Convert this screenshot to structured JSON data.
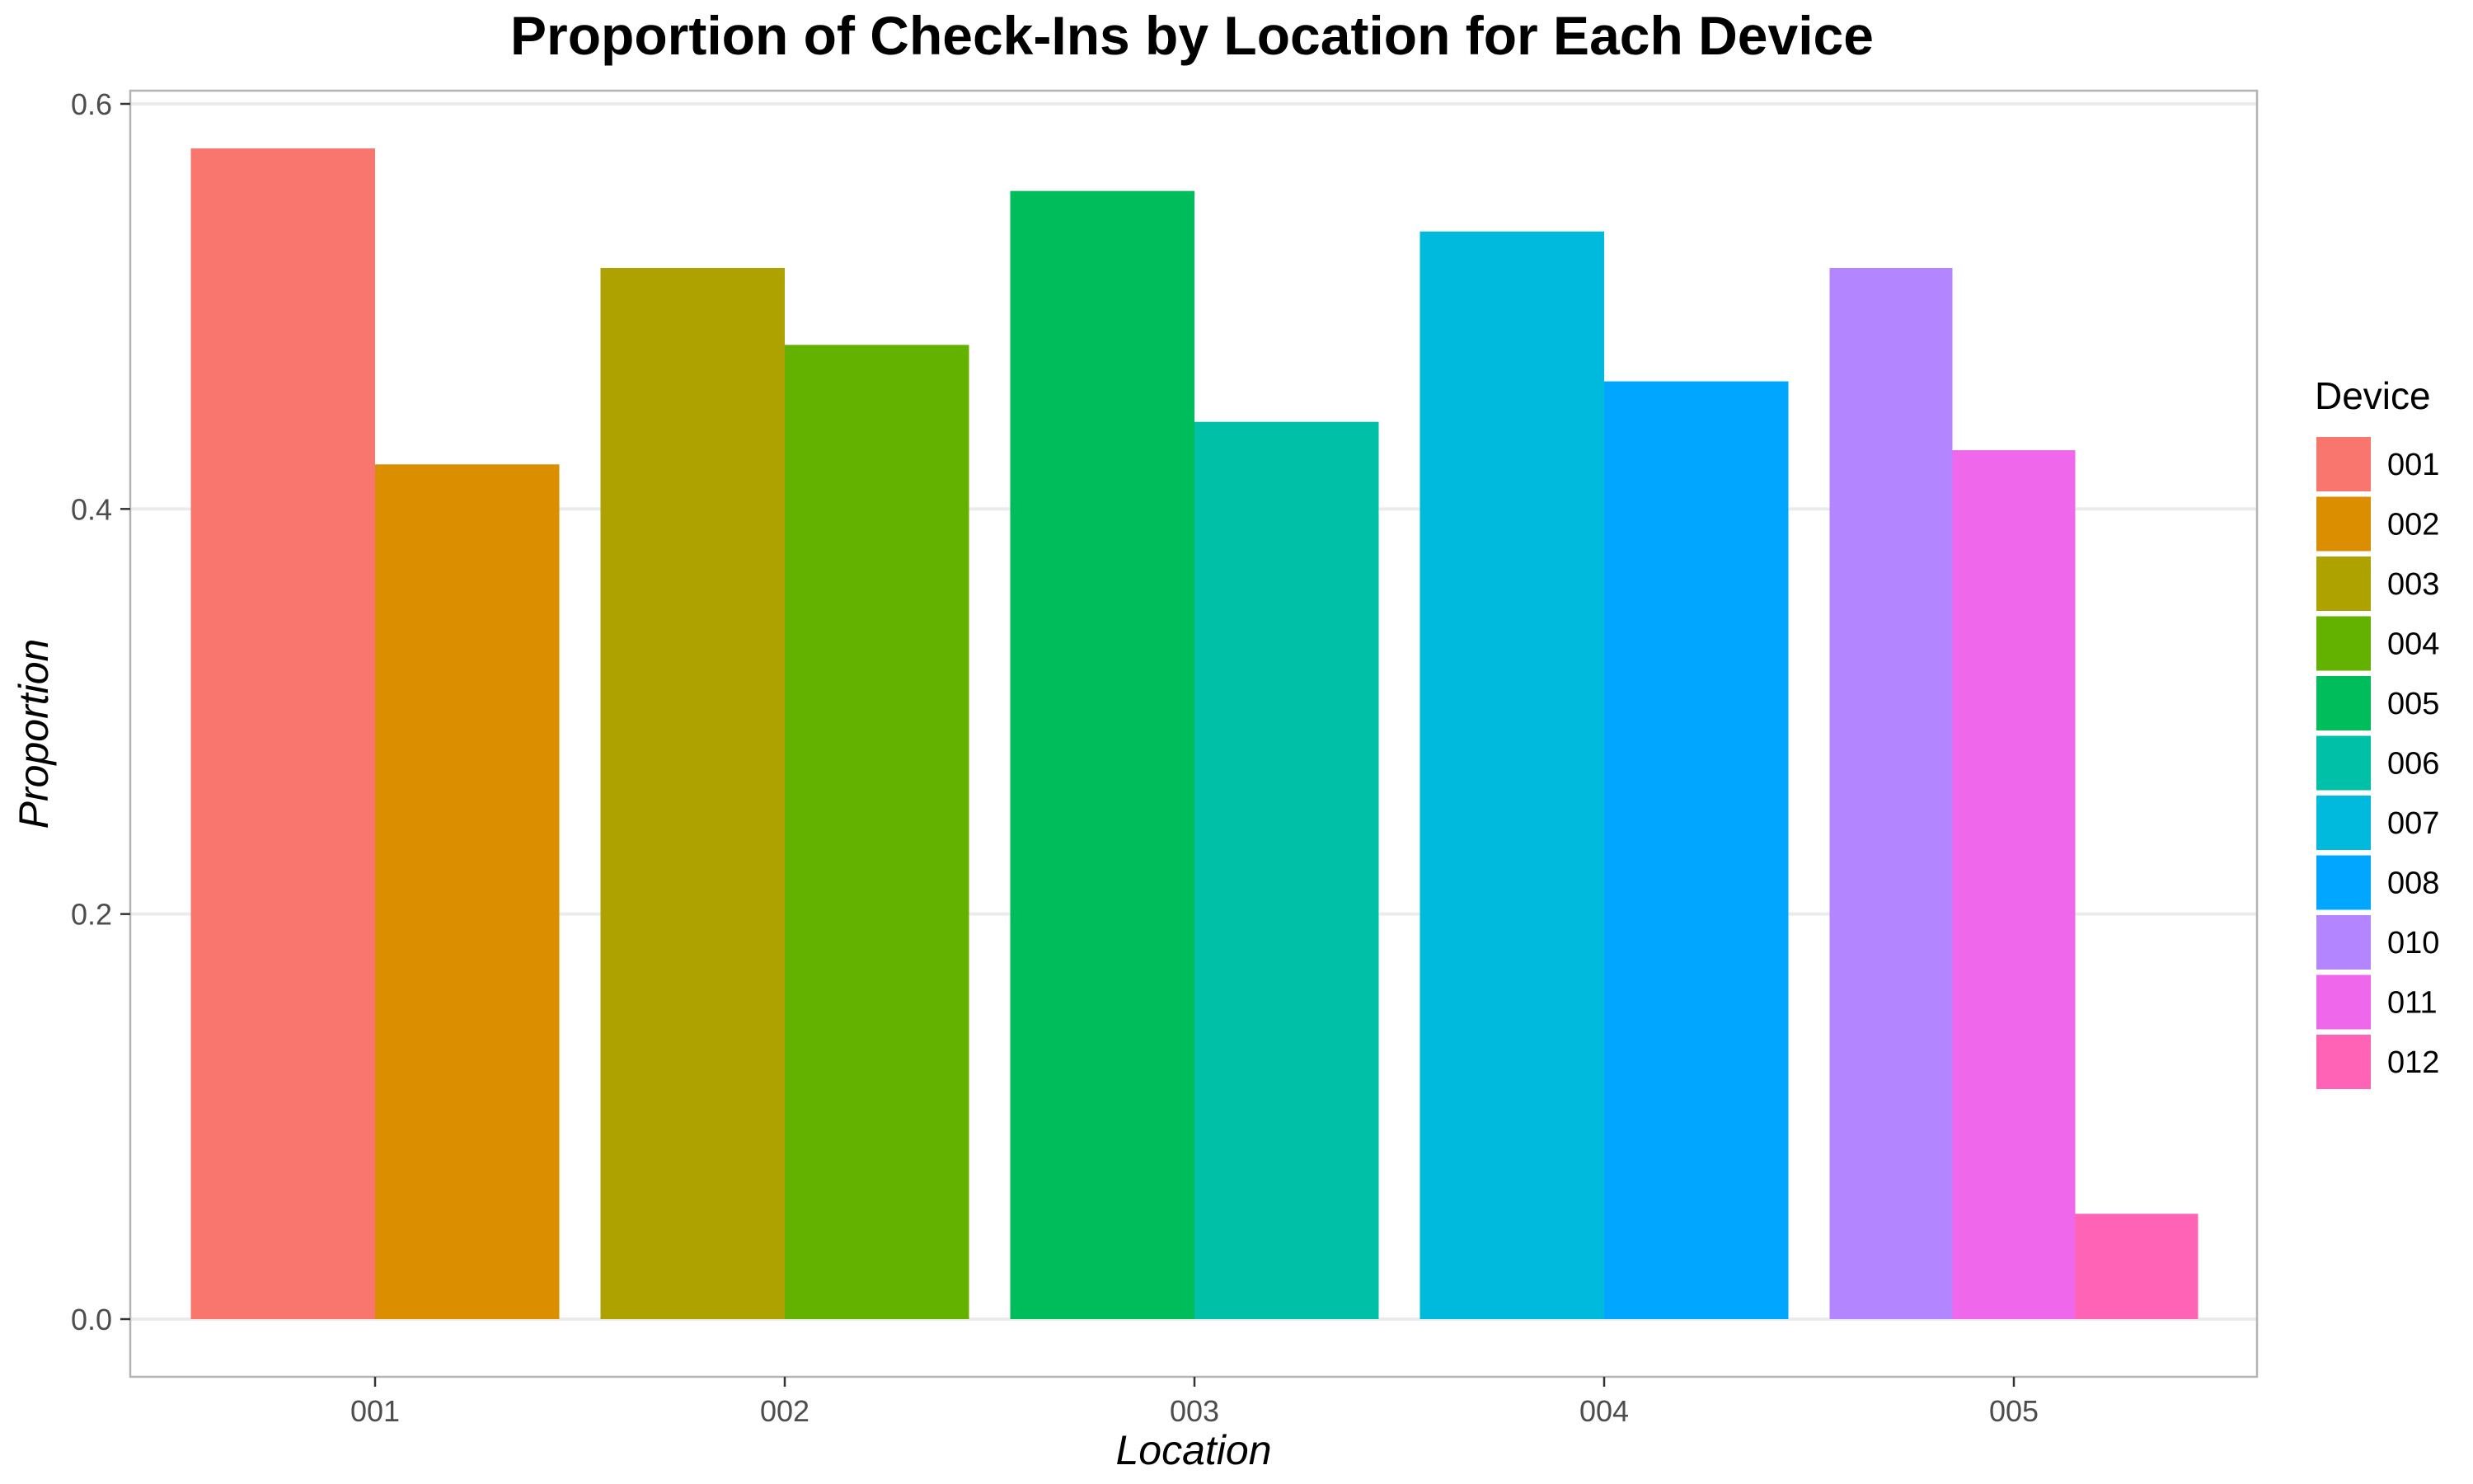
{
  "chart_data": {
    "type": "bar",
    "title": "Proportion of Check-Ins by Location for Each Device",
    "xlabel": "Location",
    "ylabel": "Proportion",
    "ylim": [
      0,
      0.6
    ],
    "yticks": [
      0.0,
      0.2,
      0.4,
      0.6
    ],
    "ytick_labels": [
      "0.0",
      "0.2",
      "0.4",
      "0.6"
    ],
    "grid": true,
    "legend": {
      "title": "Device",
      "placement": "right",
      "entries": [
        {
          "name": "001",
          "color": "#F8766D"
        },
        {
          "name": "002",
          "color": "#DB8E00"
        },
        {
          "name": "003",
          "color": "#AEA200"
        },
        {
          "name": "004",
          "color": "#64B200"
        },
        {
          "name": "005",
          "color": "#00BD5C"
        },
        {
          "name": "006",
          "color": "#00C1A7"
        },
        {
          "name": "007",
          "color": "#00BADE"
        },
        {
          "name": "008",
          "color": "#00A6FF"
        },
        {
          "name": "010",
          "color": "#B385FF"
        },
        {
          "name": "011",
          "color": "#EF67EB"
        },
        {
          "name": "012",
          "color": "#FF63B6"
        }
      ]
    },
    "categories": [
      "001",
      "002",
      "003",
      "004",
      "005"
    ],
    "groups": [
      {
        "location": "001",
        "bars": [
          {
            "device": "001",
            "value": 0.578
          },
          {
            "device": "002",
            "value": 0.422
          }
        ]
      },
      {
        "location": "002",
        "bars": [
          {
            "device": "003",
            "value": 0.519
          },
          {
            "device": "004",
            "value": 0.481
          }
        ]
      },
      {
        "location": "003",
        "bars": [
          {
            "device": "005",
            "value": 0.557
          },
          {
            "device": "006",
            "value": 0.443
          }
        ]
      },
      {
        "location": "004",
        "bars": [
          {
            "device": "007",
            "value": 0.537
          },
          {
            "device": "008",
            "value": 0.463
          }
        ]
      },
      {
        "location": "005",
        "bars": [
          {
            "device": "010",
            "value": 0.519
          },
          {
            "device": "011",
            "value": 0.429
          },
          {
            "device": "012",
            "value": 0.052
          }
        ]
      }
    ]
  }
}
